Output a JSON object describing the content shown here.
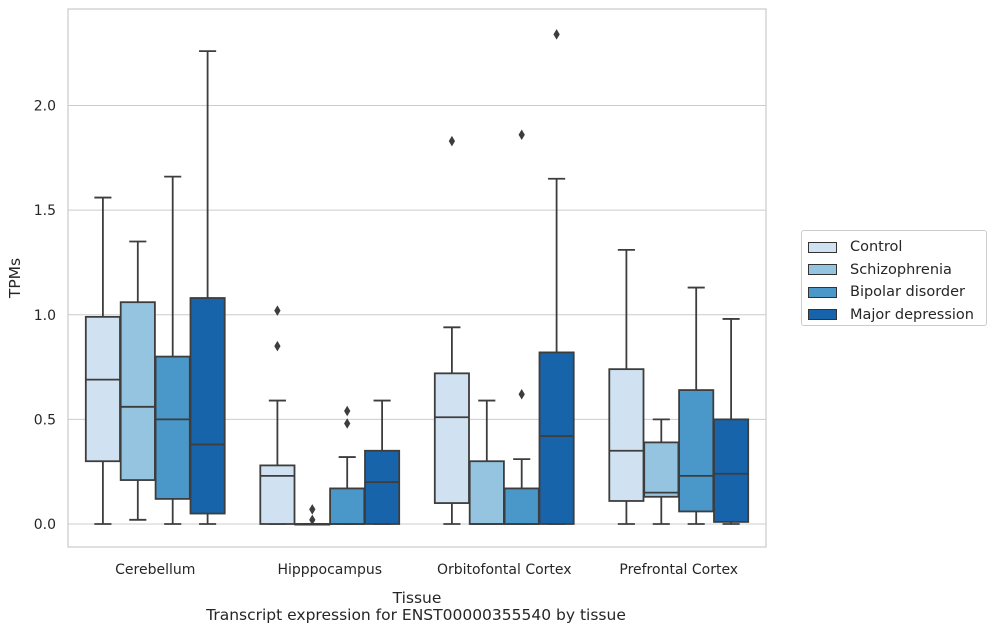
{
  "chart_data": {
    "type": "box",
    "xlabel": "Tissue",
    "ylabel": "TPMs",
    "ylim": [
      -0.11,
      2.47
    ],
    "yticks": [
      "0.0",
      "0.5",
      "1.0",
      "1.5",
      "2.0"
    ],
    "yticks_values": [
      0.0,
      0.5,
      1.0,
      1.5,
      2.0
    ],
    "grid": "horizontal",
    "legend_position": "right",
    "categories": [
      "Cerebellum",
      "Hipppocampus",
      "Orbitofontal Cortex",
      "Prefrontal Cortex"
    ],
    "series": [
      {
        "name": "Control",
        "color": "#d0e1f2",
        "boxes": [
          {
            "whislo": 0.0,
            "q1": 0.3,
            "med": 0.69,
            "q3": 0.99,
            "whishi": 1.56,
            "fliers": []
          },
          {
            "whislo": 0.0,
            "q1": 0.0,
            "med": 0.23,
            "q3": 0.28,
            "whishi": 0.59,
            "fliers": [
              0.85,
              1.02
            ]
          },
          {
            "whislo": 0.0,
            "q1": 0.1,
            "med": 0.51,
            "q3": 0.72,
            "whishi": 0.94,
            "fliers": [
              1.83
            ]
          },
          {
            "whislo": 0.0,
            "q1": 0.11,
            "med": 0.35,
            "q3": 0.74,
            "whishi": 1.31,
            "fliers": []
          }
        ]
      },
      {
        "name": "Schizophrenia",
        "color": "#94c4df",
        "boxes": [
          {
            "whislo": 0.02,
            "q1": 0.21,
            "med": 0.56,
            "q3": 1.06,
            "whishi": 1.35,
            "fliers": []
          },
          {
            "whislo": 0.0,
            "q1": 0.0,
            "med": 0.0,
            "q3": 0.0,
            "whishi": 0.0,
            "fliers": [
              0.02,
              0.07
            ]
          },
          {
            "whislo": 0.0,
            "q1": 0.0,
            "med": 0.0,
            "q3": 0.3,
            "whishi": 0.59,
            "fliers": []
          },
          {
            "whislo": 0.0,
            "q1": 0.13,
            "med": 0.15,
            "q3": 0.39,
            "whishi": 0.5,
            "fliers": []
          }
        ]
      },
      {
        "name": "Bipolar disorder",
        "color": "#4a98c9",
        "boxes": [
          {
            "whislo": 0.0,
            "q1": 0.12,
            "med": 0.5,
            "q3": 0.8,
            "whishi": 1.66,
            "fliers": []
          },
          {
            "whislo": 0.0,
            "q1": 0.0,
            "med": 0.0,
            "q3": 0.17,
            "whishi": 0.32,
            "fliers": [
              0.48,
              0.54
            ]
          },
          {
            "whislo": 0.0,
            "q1": 0.0,
            "med": 0.0,
            "q3": 0.17,
            "whishi": 0.31,
            "fliers": [
              0.62,
              1.86
            ]
          },
          {
            "whislo": 0.0,
            "q1": 0.06,
            "med": 0.23,
            "q3": 0.64,
            "whishi": 1.13,
            "fliers": []
          }
        ]
      },
      {
        "name": "Major depression",
        "color": "#1764ab",
        "boxes": [
          {
            "whislo": 0.0,
            "q1": 0.05,
            "med": 0.38,
            "q3": 1.08,
            "whishi": 2.26,
            "fliers": []
          },
          {
            "whislo": 0.0,
            "q1": 0.0,
            "med": 0.2,
            "q3": 0.35,
            "whishi": 0.59,
            "fliers": []
          },
          {
            "whislo": 0.0,
            "q1": 0.0,
            "med": 0.42,
            "q3": 0.82,
            "whishi": 1.65,
            "fliers": [
              2.34
            ]
          },
          {
            "whislo": 0.0,
            "q1": 0.01,
            "med": 0.24,
            "q3": 0.5,
            "whishi": 0.98,
            "fliers": []
          }
        ]
      }
    ],
    "caption": "Transcript expression for ENST00000355540 by tissue"
  }
}
